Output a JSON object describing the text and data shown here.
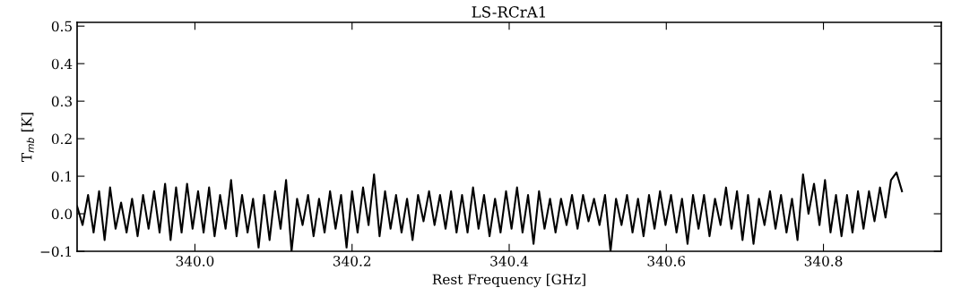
{
  "chart_data": {
    "type": "line",
    "title": "LS-RCrA1",
    "xlabel": "Rest Frequency [GHz]",
    "ylabel": "T$_{mb}$ [K]",
    "xlim": [
      339.85,
      340.95
    ],
    "ylim": [
      -0.1,
      0.51
    ],
    "xticks": [
      {
        "value": 340.0,
        "label": "340.0"
      },
      340.2,
      340.4,
      340.6,
      340.8
    ],
    "yticks": [
      {
        "value": -0.1,
        "label": "−0.1"
      },
      {
        "value": 0.0,
        "label": "0.0"
      },
      0.1,
      0.2,
      0.3,
      0.4,
      0.5
    ],
    "grid": false,
    "legend": false,
    "marker": "none",
    "line_style": "solid",
    "series": [
      {
        "color": "#000000",
        "x": [
          339.85,
          339.857,
          339.864,
          339.871,
          339.878,
          339.885,
          339.892,
          339.899,
          339.906,
          339.913,
          339.92,
          339.927,
          339.934,
          339.941,
          339.948,
          339.955,
          339.962,
          339.969,
          339.976,
          339.983,
          339.99,
          339.997,
          340.004,
          340.011,
          340.018,
          340.025,
          340.032,
          340.039,
          340.046,
          340.053,
          340.06,
          340.067,
          340.074,
          340.081,
          340.088,
          340.095,
          340.102,
          340.109,
          340.116,
          340.123,
          340.13,
          340.137,
          340.144,
          340.151,
          340.158,
          340.165,
          340.172,
          340.179,
          340.186,
          340.193,
          340.2,
          340.207,
          340.214,
          340.221,
          340.228,
          340.235,
          340.242,
          340.249,
          340.256,
          340.263,
          340.27,
          340.277,
          340.284,
          340.291,
          340.298,
          340.305,
          340.312,
          340.319,
          340.326,
          340.333,
          340.34,
          340.347,
          340.354,
          340.361,
          340.368,
          340.375,
          340.382,
          340.389,
          340.396,
          340.403,
          340.41,
          340.417,
          340.424,
          340.431,
          340.438,
          340.445,
          340.452,
          340.459,
          340.466,
          340.473,
          340.48,
          340.487,
          340.494,
          340.501,
          340.508,
          340.515,
          340.522,
          340.529,
          340.536,
          340.543,
          340.55,
          340.557,
          340.564,
          340.571,
          340.578,
          340.585,
          340.592,
          340.599,
          340.606,
          340.613,
          340.62,
          340.627,
          340.634,
          340.641,
          340.648,
          340.655,
          340.662,
          340.669,
          340.676,
          340.683,
          340.69,
          340.697,
          340.704,
          340.711,
          340.718,
          340.725,
          340.732,
          340.739,
          340.746,
          340.753,
          340.76,
          340.767,
          340.774,
          340.781,
          340.788,
          340.795,
          340.802,
          340.809,
          340.816,
          340.823,
          340.83,
          340.837,
          340.844,
          340.851,
          340.858,
          340.865,
          340.872,
          340.879,
          340.886,
          340.893,
          340.9
        ],
        "values": [
          0.02,
          -0.03,
          0.05,
          -0.05,
          0.06,
          -0.07,
          0.07,
          -0.04,
          0.03,
          -0.05,
          0.04,
          -0.06,
          0.05,
          -0.04,
          0.06,
          -0.05,
          0.08,
          -0.07,
          0.07,
          -0.05,
          0.08,
          -0.04,
          0.06,
          -0.05,
          0.07,
          -0.06,
          0.05,
          -0.04,
          0.09,
          -0.06,
          0.05,
          -0.05,
          0.04,
          -0.09,
          0.05,
          -0.07,
          0.06,
          -0.04,
          0.09,
          -0.1,
          0.04,
          -0.03,
          0.05,
          -0.06,
          0.04,
          -0.05,
          0.06,
          -0.04,
          0.05,
          -0.09,
          0.06,
          -0.05,
          0.07,
          -0.03,
          0.105,
          -0.06,
          0.06,
          -0.04,
          0.05,
          -0.05,
          0.04,
          -0.07,
          0.05,
          -0.02,
          0.06,
          -0.03,
          0.05,
          -0.04,
          0.06,
          -0.05,
          0.05,
          -0.05,
          0.07,
          -0.04,
          0.05,
          -0.06,
          0.04,
          -0.05,
          0.06,
          -0.04,
          0.07,
          -0.05,
          0.05,
          -0.08,
          0.06,
          -0.04,
          0.04,
          -0.05,
          0.04,
          -0.03,
          0.05,
          -0.04,
          0.05,
          -0.02,
          0.04,
          -0.03,
          0.05,
          -0.1,
          0.04,
          -0.03,
          0.05,
          -0.05,
          0.04,
          -0.06,
          0.05,
          -0.04,
          0.06,
          -0.03,
          0.05,
          -0.05,
          0.04,
          -0.08,
          0.05,
          -0.04,
          0.05,
          -0.06,
          0.04,
          -0.03,
          0.07,
          -0.04,
          0.06,
          -0.07,
          0.05,
          -0.08,
          0.04,
          -0.03,
          0.06,
          -0.04,
          0.05,
          -0.05,
          0.04,
          -0.07,
          0.105,
          0.0,
          0.08,
          -0.03,
          0.09,
          -0.05,
          0.05,
          -0.06,
          0.05,
          -0.05,
          0.06,
          -0.04,
          0.06,
          -0.02,
          0.07,
          -0.01,
          0.09,
          0.11,
          0.06
        ]
      }
    ]
  }
}
